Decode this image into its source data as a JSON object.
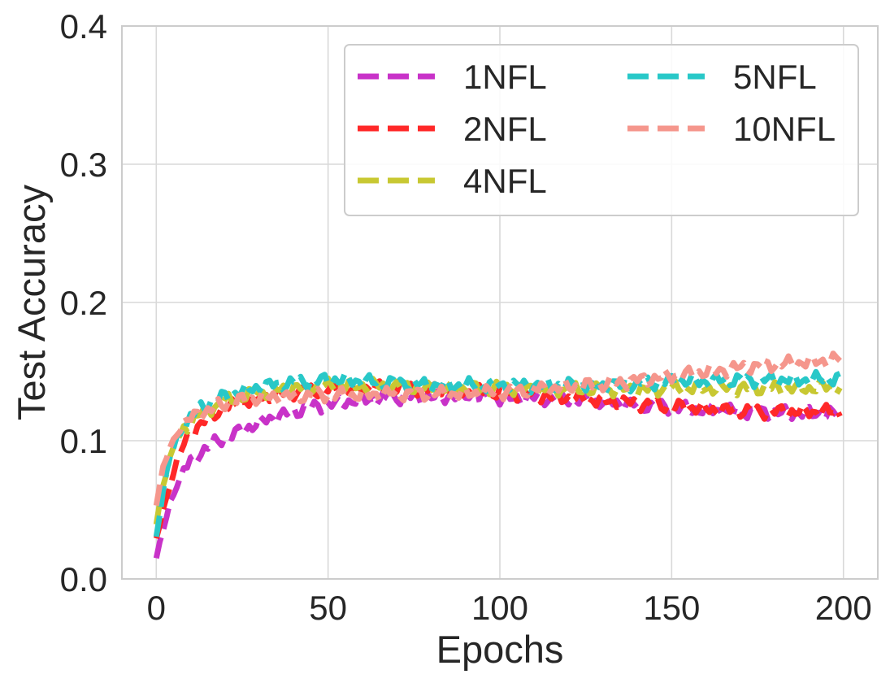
{
  "chart_data": {
    "type": "line",
    "title": "",
    "xlabel": "Epochs",
    "ylabel": "Test Accuracy",
    "xlim": [
      -10,
      210
    ],
    "ylim": [
      0.0,
      0.4
    ],
    "xticks": [
      0,
      50,
      100,
      150,
      200
    ],
    "yticks": [
      0.0,
      0.1,
      0.2,
      0.3,
      0.4
    ],
    "xtick_labels": [
      "0",
      "50",
      "100",
      "150",
      "200"
    ],
    "ytick_labels": [
      "0.0",
      "0.1",
      "0.2",
      "0.3",
      "0.4"
    ],
    "grid": true,
    "legend": {
      "position": "top-right",
      "columns": 2
    },
    "series": [
      {
        "name": "1NFL",
        "color": "#c832c8",
        "points": [
          [
            0,
            0.015
          ],
          [
            2,
            0.035
          ],
          [
            4,
            0.055
          ],
          [
            6,
            0.068
          ],
          [
            8,
            0.078
          ],
          [
            10,
            0.085
          ],
          [
            12,
            0.09
          ],
          [
            15,
            0.095
          ],
          [
            18,
            0.1
          ],
          [
            21,
            0.103
          ],
          [
            24,
            0.106
          ],
          [
            27,
            0.11
          ],
          [
            30,
            0.113
          ],
          [
            33,
            0.116
          ],
          [
            36,
            0.118
          ],
          [
            40,
            0.121
          ],
          [
            45,
            0.124
          ],
          [
            50,
            0.126
          ],
          [
            55,
            0.128
          ],
          [
            60,
            0.13
          ],
          [
            65,
            0.13
          ],
          [
            70,
            0.131
          ],
          [
            75,
            0.132
          ],
          [
            80,
            0.131
          ],
          [
            85,
            0.132
          ],
          [
            90,
            0.133
          ],
          [
            95,
            0.132
          ],
          [
            100,
            0.131
          ],
          [
            105,
            0.13
          ],
          [
            110,
            0.131
          ],
          [
            115,
            0.13
          ],
          [
            120,
            0.13
          ],
          [
            125,
            0.129
          ],
          [
            130,
            0.128
          ],
          [
            135,
            0.127
          ],
          [
            140,
            0.126
          ],
          [
            145,
            0.125
          ],
          [
            150,
            0.124
          ],
          [
            155,
            0.123
          ],
          [
            160,
            0.122
          ],
          [
            165,
            0.122
          ],
          [
            170,
            0.121
          ],
          [
            175,
            0.121
          ],
          [
            180,
            0.12
          ],
          [
            185,
            0.12
          ],
          [
            190,
            0.12
          ],
          [
            195,
            0.119
          ],
          [
            199,
            0.12
          ]
        ]
      },
      {
        "name": "2NFL",
        "color": "#ff2828",
        "points": [
          [
            0,
            0.028
          ],
          [
            2,
            0.05
          ],
          [
            4,
            0.068
          ],
          [
            6,
            0.085
          ],
          [
            8,
            0.097
          ],
          [
            10,
            0.105
          ],
          [
            12,
            0.11
          ],
          [
            15,
            0.116
          ],
          [
            18,
            0.121
          ],
          [
            21,
            0.124
          ],
          [
            24,
            0.127
          ],
          [
            27,
            0.129
          ],
          [
            30,
            0.131
          ],
          [
            33,
            0.132
          ],
          [
            36,
            0.134
          ],
          [
            40,
            0.135
          ],
          [
            45,
            0.136
          ],
          [
            50,
            0.137
          ],
          [
            55,
            0.137
          ],
          [
            60,
            0.138
          ],
          [
            65,
            0.139
          ],
          [
            70,
            0.138
          ],
          [
            75,
            0.138
          ],
          [
            80,
            0.137
          ],
          [
            85,
            0.137
          ],
          [
            90,
            0.136
          ],
          [
            95,
            0.135
          ],
          [
            100,
            0.135
          ],
          [
            105,
            0.134
          ],
          [
            110,
            0.133
          ],
          [
            115,
            0.132
          ],
          [
            120,
            0.131
          ],
          [
            125,
            0.13
          ],
          [
            130,
            0.129
          ],
          [
            135,
            0.128
          ],
          [
            140,
            0.127
          ],
          [
            145,
            0.126
          ],
          [
            150,
            0.125
          ],
          [
            155,
            0.124
          ],
          [
            160,
            0.123
          ],
          [
            165,
            0.122
          ],
          [
            170,
            0.122
          ],
          [
            175,
            0.121
          ],
          [
            180,
            0.121
          ],
          [
            185,
            0.121
          ],
          [
            190,
            0.121
          ],
          [
            195,
            0.121
          ],
          [
            199,
            0.121
          ]
        ]
      },
      {
        "name": "4NFL",
        "color": "#c8c832",
        "points": [
          [
            0,
            0.04
          ],
          [
            2,
            0.068
          ],
          [
            4,
            0.088
          ],
          [
            6,
            0.1
          ],
          [
            8,
            0.108
          ],
          [
            10,
            0.113
          ],
          [
            12,
            0.118
          ],
          [
            15,
            0.122
          ],
          [
            18,
            0.126
          ],
          [
            21,
            0.129
          ],
          [
            24,
            0.131
          ],
          [
            27,
            0.133
          ],
          [
            30,
            0.135
          ],
          [
            33,
            0.136
          ],
          [
            36,
            0.137
          ],
          [
            40,
            0.138
          ],
          [
            45,
            0.139
          ],
          [
            50,
            0.14
          ],
          [
            55,
            0.14
          ],
          [
            60,
            0.14
          ],
          [
            65,
            0.14
          ],
          [
            70,
            0.139
          ],
          [
            75,
            0.139
          ],
          [
            80,
            0.138
          ],
          [
            85,
            0.138
          ],
          [
            90,
            0.138
          ],
          [
            95,
            0.138
          ],
          [
            100,
            0.138
          ],
          [
            105,
            0.138
          ],
          [
            110,
            0.137
          ],
          [
            115,
            0.137
          ],
          [
            120,
            0.137
          ],
          [
            125,
            0.137
          ],
          [
            130,
            0.137
          ],
          [
            135,
            0.137
          ],
          [
            140,
            0.137
          ],
          [
            145,
            0.137
          ],
          [
            150,
            0.138
          ],
          [
            155,
            0.138
          ],
          [
            160,
            0.138
          ],
          [
            165,
            0.138
          ],
          [
            170,
            0.138
          ],
          [
            175,
            0.138
          ],
          [
            180,
            0.138
          ],
          [
            185,
            0.138
          ],
          [
            190,
            0.138
          ],
          [
            195,
            0.139
          ],
          [
            199,
            0.139
          ]
        ]
      },
      {
        "name": "5NFL",
        "color": "#28c8c8",
        "points": [
          [
            0,
            0.03
          ],
          [
            2,
            0.065
          ],
          [
            4,
            0.088
          ],
          [
            6,
            0.102
          ],
          [
            8,
            0.11
          ],
          [
            10,
            0.117
          ],
          [
            12,
            0.122
          ],
          [
            15,
            0.127
          ],
          [
            18,
            0.13
          ],
          [
            21,
            0.133
          ],
          [
            24,
            0.135
          ],
          [
            27,
            0.137
          ],
          [
            30,
            0.139
          ],
          [
            33,
            0.14
          ],
          [
            36,
            0.141
          ],
          [
            40,
            0.142
          ],
          [
            45,
            0.143
          ],
          [
            50,
            0.144
          ],
          [
            55,
            0.144
          ],
          [
            60,
            0.143
          ],
          [
            65,
            0.142
          ],
          [
            70,
            0.142
          ],
          [
            75,
            0.141
          ],
          [
            80,
            0.14
          ],
          [
            85,
            0.14
          ],
          [
            90,
            0.14
          ],
          [
            95,
            0.14
          ],
          [
            100,
            0.14
          ],
          [
            105,
            0.14
          ],
          [
            110,
            0.14
          ],
          [
            115,
            0.14
          ],
          [
            120,
            0.14
          ],
          [
            125,
            0.14
          ],
          [
            130,
            0.14
          ],
          [
            135,
            0.14
          ],
          [
            140,
            0.141
          ],
          [
            145,
            0.142
          ],
          [
            150,
            0.143
          ],
          [
            155,
            0.143
          ],
          [
            160,
            0.143
          ],
          [
            165,
            0.144
          ],
          [
            170,
            0.144
          ],
          [
            175,
            0.144
          ],
          [
            180,
            0.144
          ],
          [
            185,
            0.144
          ],
          [
            190,
            0.144
          ],
          [
            195,
            0.145
          ],
          [
            199,
            0.145
          ]
        ]
      },
      {
        "name": "10NFL",
        "color": "#f5968c",
        "points": [
          [
            0,
            0.055
          ],
          [
            2,
            0.08
          ],
          [
            4,
            0.095
          ],
          [
            6,
            0.105
          ],
          [
            8,
            0.112
          ],
          [
            10,
            0.116
          ],
          [
            12,
            0.119
          ],
          [
            15,
            0.122
          ],
          [
            18,
            0.125
          ],
          [
            21,
            0.127
          ],
          [
            24,
            0.129
          ],
          [
            27,
            0.13
          ],
          [
            30,
            0.131
          ],
          [
            33,
            0.132
          ],
          [
            36,
            0.132
          ],
          [
            40,
            0.132
          ],
          [
            45,
            0.133
          ],
          [
            50,
            0.133
          ],
          [
            55,
            0.133
          ],
          [
            60,
            0.133
          ],
          [
            65,
            0.134
          ],
          [
            70,
            0.134
          ],
          [
            75,
            0.134
          ],
          [
            80,
            0.134
          ],
          [
            85,
            0.134
          ],
          [
            90,
            0.134
          ],
          [
            95,
            0.135
          ],
          [
            100,
            0.135
          ],
          [
            105,
            0.136
          ],
          [
            110,
            0.137
          ],
          [
            115,
            0.138
          ],
          [
            120,
            0.139
          ],
          [
            125,
            0.14
          ],
          [
            130,
            0.141
          ],
          [
            135,
            0.142
          ],
          [
            140,
            0.144
          ],
          [
            145,
            0.145
          ],
          [
            150,
            0.147
          ],
          [
            155,
            0.148
          ],
          [
            160,
            0.15
          ],
          [
            165,
            0.151
          ],
          [
            170,
            0.153
          ],
          [
            175,
            0.154
          ],
          [
            180,
            0.155
          ],
          [
            185,
            0.156
          ],
          [
            190,
            0.157
          ],
          [
            195,
            0.158
          ],
          [
            199,
            0.159
          ]
        ]
      }
    ]
  }
}
